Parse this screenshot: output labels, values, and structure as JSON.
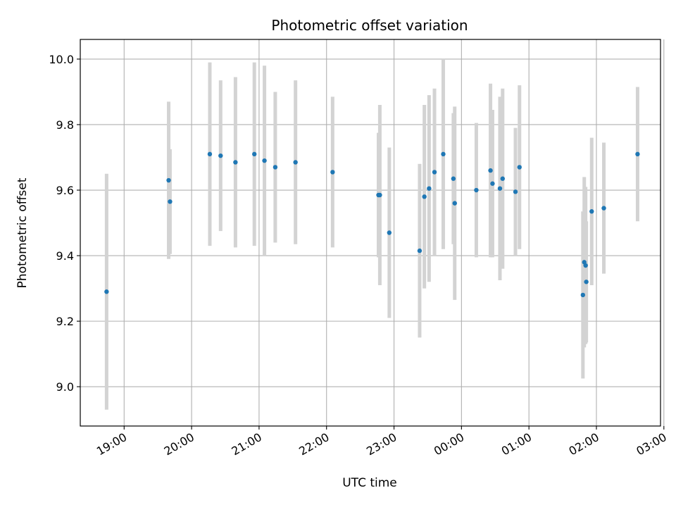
{
  "chart_data": {
    "type": "scatter",
    "title": "Photometric offset variation",
    "xlabel": "UTC time",
    "ylabel": "Photometric offset",
    "x_axis": "time (hours relative to 00:00 UTC)",
    "xlim": [
      -5.65,
      2.95
    ],
    "ylim": [
      8.88,
      10.06
    ],
    "x_ticks": [
      {
        "value": -5,
        "label": "19:00"
      },
      {
        "value": -4,
        "label": "20:00"
      },
      {
        "value": -3,
        "label": "21:00"
      },
      {
        "value": -2,
        "label": "22:00"
      },
      {
        "value": -1,
        "label": "23:00"
      },
      {
        "value": 0,
        "label": "00:00"
      },
      {
        "value": 1,
        "label": "01:00"
      },
      {
        "value": 2,
        "label": "02:00"
      },
      {
        "value": 3,
        "label": "03:00"
      }
    ],
    "y_ticks": [
      {
        "value": 9.0,
        "label": "9.0"
      },
      {
        "value": 9.2,
        "label": "9.2"
      },
      {
        "value": 9.4,
        "label": "9.4"
      },
      {
        "value": 9.6,
        "label": "9.6"
      },
      {
        "value": 9.8,
        "label": "9.8"
      },
      {
        "value": 10.0,
        "label": "10.0"
      }
    ],
    "grid": true,
    "marker_color": "#1f77b4",
    "errorbar_color": "#d3d3d3",
    "points": [
      {
        "x": -5.26,
        "y": 9.29,
        "err": 0.36
      },
      {
        "x": -4.34,
        "y": 9.63,
        "err": 0.24
      },
      {
        "x": -4.32,
        "y": 9.565,
        "err": 0.16
      },
      {
        "x": -3.73,
        "y": 9.71,
        "err": 0.28
      },
      {
        "x": -3.57,
        "y": 9.705,
        "err": 0.23
      },
      {
        "x": -3.35,
        "y": 9.685,
        "err": 0.26
      },
      {
        "x": -3.07,
        "y": 9.71,
        "err": 0.28
      },
      {
        "x": -2.92,
        "y": 9.69,
        "err": 0.29
      },
      {
        "x": -2.76,
        "y": 9.67,
        "err": 0.23
      },
      {
        "x": -2.46,
        "y": 9.685,
        "err": 0.25
      },
      {
        "x": -1.91,
        "y": 9.655,
        "err": 0.23
      },
      {
        "x": -1.23,
        "y": 9.585,
        "err": 0.19
      },
      {
        "x": -1.21,
        "y": 9.585,
        "err": 0.275
      },
      {
        "x": -1.07,
        "y": 9.47,
        "err": 0.26
      },
      {
        "x": -0.62,
        "y": 9.415,
        "err": 0.265
      },
      {
        "x": -0.55,
        "y": 9.58,
        "err": 0.28
      },
      {
        "x": -0.48,
        "y": 9.605,
        "err": 0.285
      },
      {
        "x": -0.4,
        "y": 9.655,
        "err": 0.255
      },
      {
        "x": -0.27,
        "y": 9.71,
        "err": 0.29
      },
      {
        "x": -0.12,
        "y": 9.635,
        "err": 0.2
      },
      {
        "x": -0.1,
        "y": 9.56,
        "err": 0.295
      },
      {
        "x": 0.22,
        "y": 9.6,
        "err": 0.205
      },
      {
        "x": 0.43,
        "y": 9.66,
        "err": 0.265
      },
      {
        "x": 0.46,
        "y": 9.62,
        "err": 0.225
      },
      {
        "x": 0.57,
        "y": 9.605,
        "err": 0.28
      },
      {
        "x": 0.61,
        "y": 9.635,
        "err": 0.275
      },
      {
        "x": 0.8,
        "y": 9.595,
        "err": 0.195
      },
      {
        "x": 0.86,
        "y": 9.67,
        "err": 0.25
      },
      {
        "x": 1.8,
        "y": 9.28,
        "err": 0.255
      },
      {
        "x": 1.82,
        "y": 9.38,
        "err": 0.26
      },
      {
        "x": 1.84,
        "y": 9.37,
        "err": 0.24
      },
      {
        "x": 1.85,
        "y": 9.32,
        "err": 0.185
      },
      {
        "x": 1.93,
        "y": 9.535,
        "err": 0.225
      },
      {
        "x": 2.11,
        "y": 9.545,
        "err": 0.2
      },
      {
        "x": 2.61,
        "y": 9.71,
        "err": 0.205
      }
    ]
  }
}
